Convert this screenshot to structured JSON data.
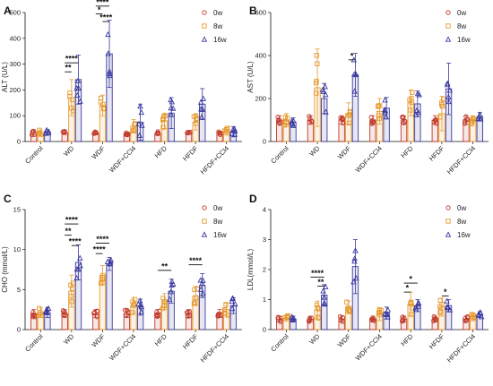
{
  "chart_data": [
    {
      "panel": "A",
      "type": "bar",
      "ylabel": "ALT (U/L)",
      "ylim": [
        0,
        500
      ],
      "yticks": [
        "0",
        "100",
        "200",
        "300",
        "400",
        "500"
      ],
      "categories": [
        "Control",
        "WD",
        "WDF",
        "WDF+CCl4",
        "HFD",
        "HFDF",
        "HFDF+CCl4"
      ],
      "series": [
        {
          "name": "0w",
          "values": [
            33,
            35,
            32,
            30,
            32,
            35,
            32
          ],
          "errors": [
            8,
            8,
            6,
            6,
            8,
            6,
            8
          ]
        },
        {
          "name": "8w",
          "values": [
            35,
            170,
            140,
            60,
            80,
            75,
            40
          ],
          "errors": [
            10,
            70,
            40,
            25,
            30,
            30,
            15
          ]
        },
        {
          "name": "16w",
          "values": [
            38,
            240,
            340,
            75,
            110,
            145,
            38
          ],
          "errors": [
            8,
            95,
            130,
            70,
            60,
            60,
            20
          ]
        }
      ],
      "significance": [
        {
          "text": "****",
          "from_cat": 1,
          "from_s": 0,
          "to_cat": 1,
          "to_s": 2,
          "y": 305
        },
        {
          "text": "**",
          "from_cat": 1,
          "from_s": 0,
          "to_cat": 1,
          "to_s": 1,
          "y": 270
        },
        {
          "text": "****",
          "from_cat": 2,
          "from_s": 0,
          "to_cat": 2,
          "to_s": 2,
          "y": 525
        },
        {
          "text": "*",
          "from_cat": 2,
          "from_s": 0,
          "to_cat": 2,
          "to_s": 1,
          "y": 495
        },
        {
          "text": "****",
          "from_cat": 2,
          "from_s": 1,
          "to_cat": 2,
          "to_s": 2,
          "y": 465
        }
      ]
    },
    {
      "panel": "B",
      "type": "bar",
      "ylabel": "AST (U/L)",
      "ylim": [
        0,
        600
      ],
      "yticks": [
        "0",
        "200",
        "400",
        "600"
      ],
      "categories": [
        "Control",
        "WD",
        "WDF",
        "WDF+CCl4",
        "HFD",
        "HFDF",
        "HFDF+CCl4"
      ],
      "series": [
        {
          "name": "0w",
          "values": [
            100,
            100,
            100,
            100,
            100,
            100,
            100
          ],
          "errors": [
            20,
            20,
            20,
            20,
            20,
            20,
            20
          ]
        },
        {
          "name": "8w",
          "values": [
            100,
            250,
            130,
            140,
            180,
            130,
            100
          ],
          "errors": [
            30,
            180,
            50,
            60,
            60,
            80,
            20
          ]
        },
        {
          "name": "16w",
          "values": [
            90,
            200,
            310,
            155,
            175,
            245,
            115
          ],
          "errors": [
            20,
            70,
            100,
            50,
            60,
            120,
            20
          ]
        }
      ],
      "significance": [
        {
          "text": "*",
          "from_cat": 2,
          "from_s": 1,
          "to_cat": 2,
          "to_s": 2,
          "y": 380
        }
      ]
    },
    {
      "panel": "C",
      "type": "bar",
      "ylabel": "CHO (mmol/L)",
      "ylim": [
        0,
        15
      ],
      "yticks": [
        "0",
        "5",
        "10",
        "15"
      ],
      "categories": [
        "Control",
        "WD",
        "WDF",
        "WDF+CCl4",
        "HFD",
        "HFDF",
        "HFDF+CCl4"
      ],
      "series": [
        {
          "name": "0w",
          "values": [
            2.0,
            2.0,
            2.0,
            2.0,
            2.0,
            2.0,
            2.0
          ],
          "errors": [
            0.5,
            0.5,
            0.5,
            0.5,
            0.5,
            0.5,
            0.5
          ]
        },
        {
          "name": "8w",
          "values": [
            2.2,
            4.8,
            6.8,
            3.0,
            3.5,
            4.2,
            2.5
          ],
          "errors": [
            0.5,
            2.0,
            1.2,
            1.0,
            1.0,
            1.2,
            0.8
          ]
        },
        {
          "name": "16w",
          "values": [
            2.1,
            8.4,
            8.2,
            2.8,
            4.8,
            5.5,
            3.0
          ],
          "errors": [
            0.6,
            2.2,
            0.8,
            1.0,
            1.5,
            1.5,
            1.0
          ]
        }
      ],
      "significance": [
        {
          "text": "****",
          "from_cat": 1,
          "from_s": 0,
          "to_cat": 1,
          "to_s": 2,
          "y": 13.2
        },
        {
          "text": "**",
          "from_cat": 1,
          "from_s": 0,
          "to_cat": 1,
          "to_s": 1,
          "y": 11.8
        },
        {
          "text": "****",
          "from_cat": 1,
          "from_s": 1,
          "to_cat": 1,
          "to_s": 2,
          "y": 10.5
        },
        {
          "text": "****",
          "from_cat": 2,
          "from_s": 0,
          "to_cat": 2,
          "to_s": 2,
          "y": 10.8
        },
        {
          "text": "****",
          "from_cat": 2,
          "from_s": 0,
          "to_cat": 2,
          "to_s": 1,
          "y": 9.5
        },
        {
          "text": "**",
          "from_cat": 4,
          "from_s": 0,
          "to_cat": 4,
          "to_s": 2,
          "y": 7.4
        },
        {
          "text": "****",
          "from_cat": 5,
          "from_s": 0,
          "to_cat": 5,
          "to_s": 2,
          "y": 8.1
        }
      ]
    },
    {
      "panel": "D",
      "type": "bar",
      "ylabel": "LDL(mmol/L)",
      "ylim": [
        0,
        4
      ],
      "yticks": [
        "0",
        "1",
        "2",
        "3",
        "4"
      ],
      "categories": [
        "Control",
        "WD",
        "WDF",
        "WDF+CCl4",
        "HFD",
        "HFDF",
        "HFDF+CCl4"
      ],
      "series": [
        {
          "name": "0w",
          "values": [
            0.35,
            0.35,
            0.35,
            0.35,
            0.35,
            0.35,
            0.35
          ],
          "errors": [
            0.1,
            0.1,
            0.1,
            0.1,
            0.1,
            0.1,
            0.1
          ]
        },
        {
          "name": "8w",
          "values": [
            0.38,
            0.65,
            0.75,
            0.5,
            0.85,
            0.75,
            0.45
          ],
          "errors": [
            0.1,
            0.3,
            0.2,
            0.2,
            0.4,
            0.3,
            0.1
          ]
        },
        {
          "name": "16w",
          "values": [
            0.35,
            1.15,
            2.1,
            0.55,
            0.8,
            0.8,
            0.5
          ],
          "errors": [
            0.1,
            0.35,
            0.9,
            0.2,
            0.2,
            0.2,
            0.1
          ]
        }
      ],
      "significance": [
        {
          "text": "****",
          "from_cat": 1,
          "from_s": 0,
          "to_cat": 1,
          "to_s": 2,
          "y": 1.75
        },
        {
          "text": "**",
          "from_cat": 1,
          "from_s": 1,
          "to_cat": 1,
          "to_s": 2,
          "y": 1.45
        },
        {
          "text": "*",
          "from_cat": 4,
          "from_s": 0,
          "to_cat": 4,
          "to_s": 2,
          "y": 1.55
        },
        {
          "text": "*",
          "from_cat": 4,
          "from_s": 0,
          "to_cat": 4,
          "to_s": 1,
          "y": 1.25
        },
        {
          "text": "*",
          "from_cat": 5,
          "from_s": 1,
          "to_cat": 5,
          "to_s": 2,
          "y": 1.12
        }
      ]
    }
  ],
  "legend": [
    {
      "label": "0w",
      "color": "#c0392b",
      "marker": "circle"
    },
    {
      "label": "8w",
      "color": "#e69a2e",
      "marker": "square"
    },
    {
      "label": "16w",
      "color": "#3a3aa0",
      "marker": "triangle"
    }
  ]
}
